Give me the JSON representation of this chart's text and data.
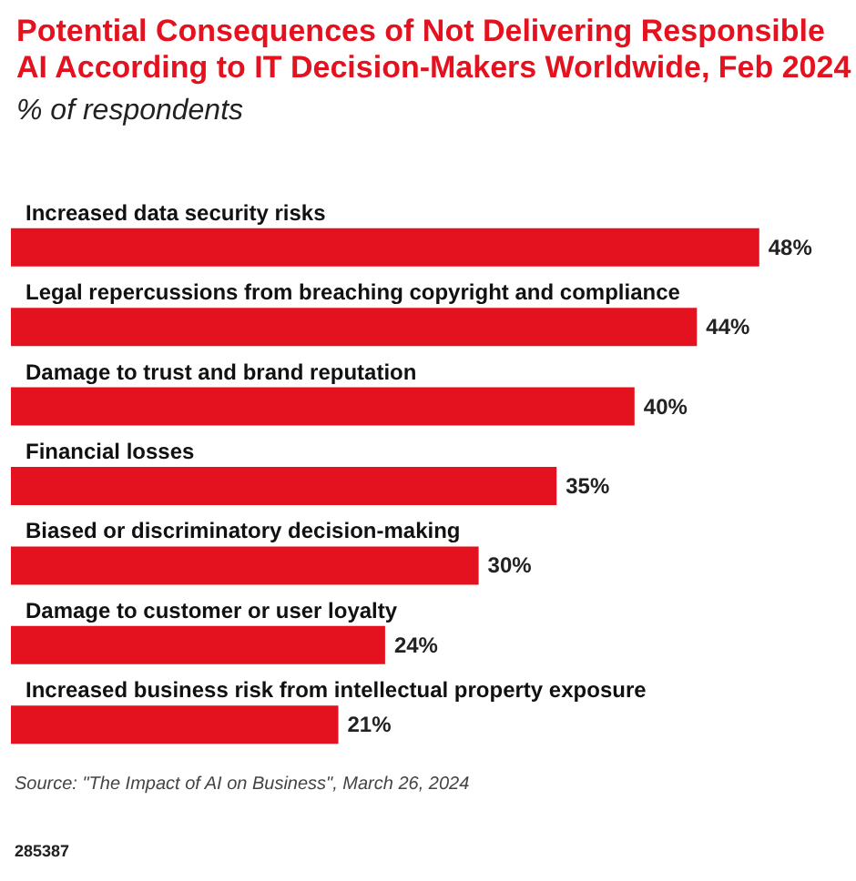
{
  "chart_data": {
    "type": "bar",
    "orientation": "horizontal",
    "title": "Potential Consequences of Not Delivering Responsible AI According to IT Decision-Makers Worldwide, Feb 2024",
    "subtitle": "% of respondents",
    "categories": [
      "Increased data security risks",
      "Legal repercussions from breaching copyright and compliance",
      "Damage to trust and brand reputation",
      "Financial losses",
      "Biased or discriminatory decision-making",
      "Damage to customer or user loyalty",
      "Increased business risk from intellectual property exposure"
    ],
    "values": [
      48,
      44,
      40,
      35,
      30,
      24,
      21
    ],
    "value_labels": [
      "48%",
      "44%",
      "40%",
      "35%",
      "30%",
      "24%",
      "21%"
    ],
    "color": "#e3121e",
    "annotations": [
      "Source: \"The Impact of AI on Business\", March 26, 2024",
      "285387"
    ]
  }
}
